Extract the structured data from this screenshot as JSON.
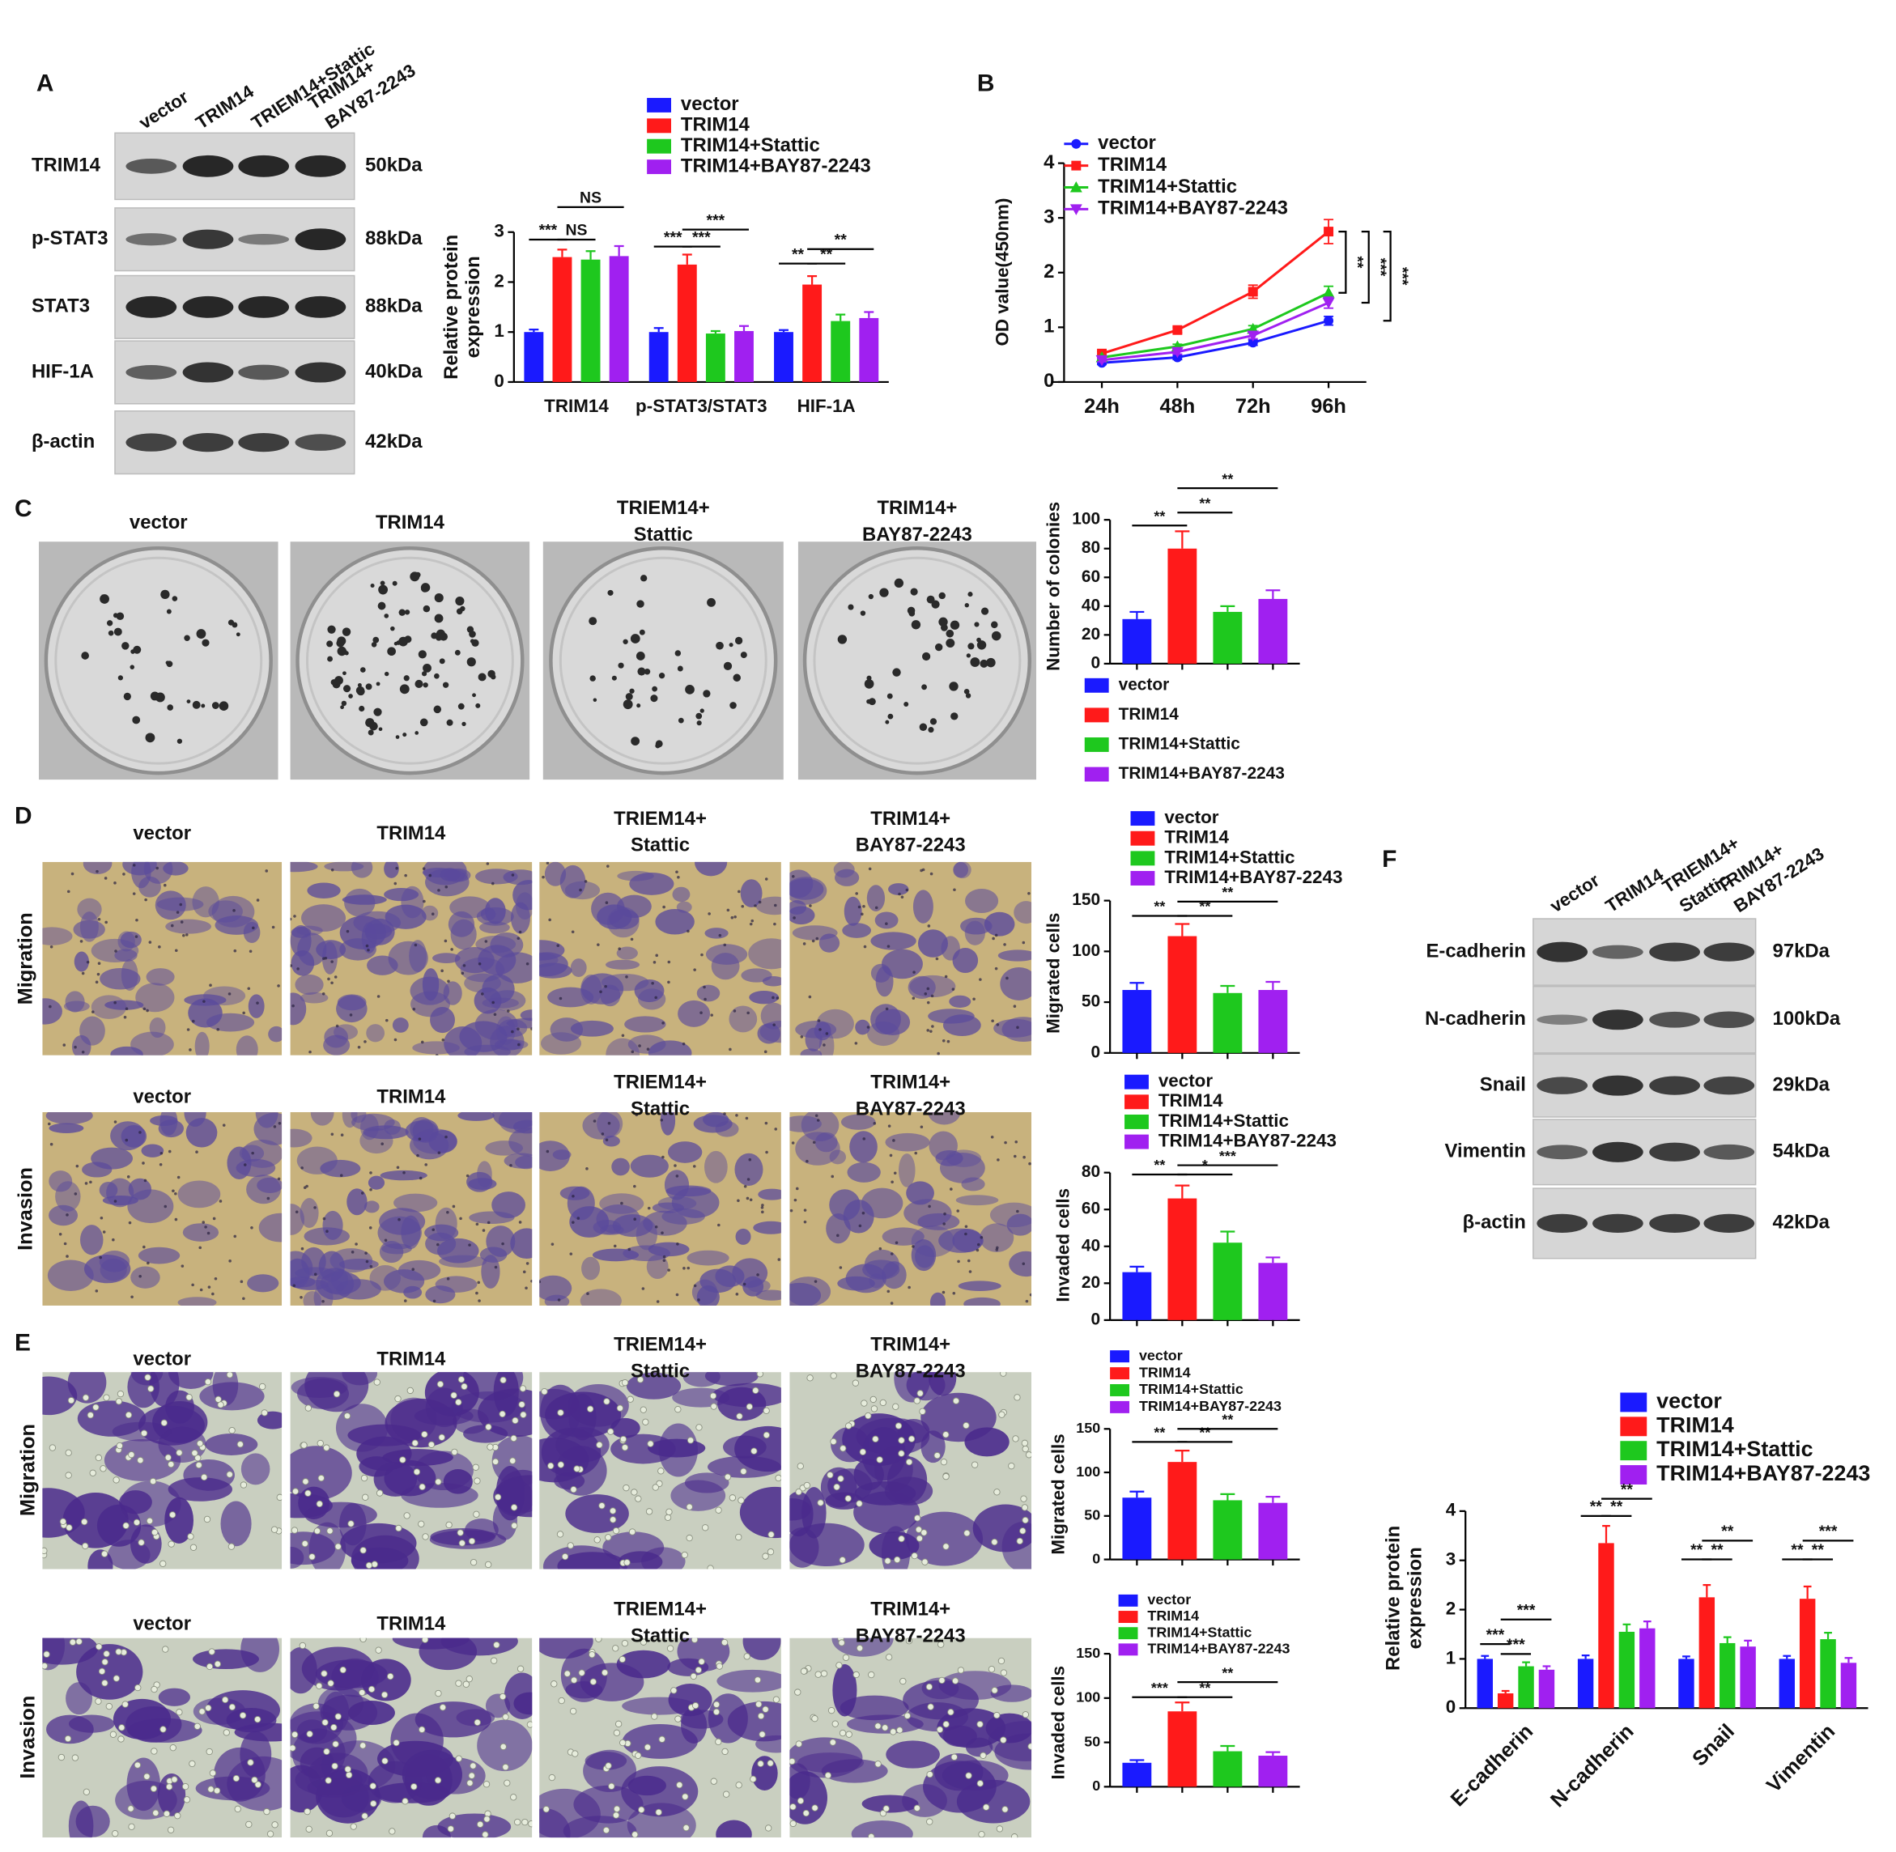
{
  "figure": {
    "panel_labels": [
      "A",
      "B",
      "C",
      "D",
      "E",
      "F"
    ],
    "blots": [
      {
        "lanes": [
          [
            "vector"
          ],
          [
            "TRIM14"
          ],
          [
            "TRIEM14+Stattic"
          ],
          [
            "TRIM14+",
            "BAY87-2243"
          ]
        ],
        "proteins": [
          "TRIM14",
          "p-STAT3",
          "STAT3",
          "HIF-1A",
          "β-actin"
        ],
        "sizes": [
          "50kDa",
          "88kDa",
          "88kDa",
          "40kDa",
          "42kDa"
        ]
      },
      {
        "lanes": [
          [
            "vector"
          ],
          [
            "TRIM14"
          ],
          [
            "TRIEM14+",
            "Stattic"
          ],
          [
            "TRIM14+",
            "BAY87-2243"
          ]
        ],
        "proteins": [
          "E-cadherin",
          "N-cadherin",
          "Snail",
          "Vimentin",
          "β-actin"
        ],
        "sizes": [
          "97kDa",
          "100kDa",
          "29kDa",
          "54kDa",
          "42kDa"
        ]
      }
    ],
    "image_rows": [
      {
        "captions": [
          [
            "vector"
          ],
          [
            "TRIM14"
          ],
          [
            "TRIEM14+",
            "Stattic"
          ],
          [
            "TRIM14+",
            "BAY87-2243"
          ]
        ]
      },
      {
        "row_label": "Migration",
        "captions": [
          [
            "vector"
          ],
          [
            "TRIM14"
          ],
          [
            "TRIEM14+",
            "Stattic"
          ],
          [
            "TRIM14+",
            "BAY87-2243"
          ]
        ]
      },
      {
        "row_label": "Invasion",
        "captions": [
          [
            "vector"
          ],
          [
            "TRIM14"
          ],
          [
            "TRIEM14+",
            "Stattic"
          ],
          [
            "TRIM14+",
            "BAY87-2243"
          ]
        ]
      },
      {
        "row_label": "Migration",
        "captions": [
          [
            "vector"
          ],
          [
            "TRIM14"
          ],
          [
            "TRIEM14+",
            "Stattic"
          ],
          [
            "TRIM14+",
            "BAY87-2243"
          ]
        ]
      },
      {
        "row_label": "Invasion",
        "captions": [
          [
            "vector"
          ],
          [
            "TRIM14"
          ],
          [
            "TRIEM14+",
            "Stattic"
          ],
          [
            "TRIM14+",
            "BAY87-2243"
          ]
        ]
      }
    ]
  },
  "chart_data": [
    {
      "type": "bar",
      "ylabel": [
        "Relative protein",
        "expression"
      ],
      "categories": [
        "TRIM14",
        "p-STAT3/STAT3",
        "HIF-1A"
      ],
      "series": [
        {
          "name": "vector",
          "color": "#1a1aff",
          "values": [
            1.0,
            1.0,
            1.0
          ],
          "errors": [
            0.05,
            0.08,
            0.04
          ]
        },
        {
          "name": "TRIM14",
          "color": "#ff1a1a",
          "values": [
            2.5,
            2.35,
            1.95
          ],
          "errors": [
            0.15,
            0.2,
            0.17
          ]
        },
        {
          "name": "TRIM14+Stattic",
          "color": "#1ec81e",
          "values": [
            2.45,
            0.97,
            1.22
          ],
          "errors": [
            0.17,
            0.05,
            0.13
          ]
        },
        {
          "name": "TRIM14+BAY87-2243",
          "color": "#a020f0",
          "values": [
            2.52,
            1.02,
            1.28
          ],
          "errors": [
            0.2,
            0.1,
            0.12
          ]
        }
      ],
      "ylim": [
        0,
        3
      ],
      "yticks": [
        0,
        1,
        2,
        3
      ],
      "annotations": [
        "***",
        "NS",
        "NS",
        "***",
        "***",
        "***",
        "**",
        "**",
        "**"
      ]
    },
    {
      "type": "line",
      "ylabel": "OD value(450nm)",
      "categories": [
        "24h",
        "48h",
        "72h",
        "96h"
      ],
      "series": [
        {
          "name": "vector",
          "color": "#1a1aff",
          "values": [
            0.35,
            0.45,
            0.72,
            1.12
          ],
          "errors": [
            0.03,
            0.04,
            0.05,
            0.08
          ]
        },
        {
          "name": "TRIM14",
          "color": "#ff1a1a",
          "values": [
            0.52,
            0.95,
            1.65,
            2.75
          ],
          "errors": [
            0.04,
            0.05,
            0.12,
            0.22
          ]
        },
        {
          "name": "TRIM14+Stattic",
          "color": "#1ec81e",
          "values": [
            0.45,
            0.65,
            0.97,
            1.63
          ],
          "errors": [
            0.03,
            0.04,
            0.06,
            0.12
          ]
        },
        {
          "name": "TRIM14+BAY87-2243",
          "color": "#a020f0",
          "values": [
            0.4,
            0.55,
            0.85,
            1.45
          ],
          "errors": [
            0.03,
            0.04,
            0.06,
            0.1
          ]
        }
      ],
      "ylim": [
        0,
        4
      ],
      "yticks": [
        0,
        1,
        2,
        3,
        4
      ],
      "annotations": [
        "**",
        "***",
        "***"
      ]
    },
    {
      "type": "bar",
      "ylabel": "Number of colonies",
      "categories": [
        null
      ],
      "series": [
        {
          "name": "vector",
          "color": "#1a1aff",
          "values": [
            31
          ],
          "errors": [
            5
          ]
        },
        {
          "name": "TRIM14",
          "color": "#ff1a1a",
          "values": [
            80
          ],
          "errors": [
            12
          ]
        },
        {
          "name": "TRIM14+Stattic",
          "color": "#1ec81e",
          "values": [
            36
          ],
          "errors": [
            4
          ]
        },
        {
          "name": "TRIM14+BAY87-2243",
          "color": "#a020f0",
          "values": [
            45
          ],
          "errors": [
            6
          ]
        }
      ],
      "ylim": [
        0,
        100
      ],
      "yticks": [
        0,
        20,
        40,
        60,
        80,
        100
      ],
      "annotations": [
        "**",
        "**",
        "**"
      ]
    },
    {
      "type": "bar",
      "ylabel": "Migrated cells",
      "categories": [
        null
      ],
      "series": [
        {
          "name": "vector",
          "color": "#1a1aff",
          "values": [
            62
          ],
          "errors": [
            7
          ]
        },
        {
          "name": "TRIM14",
          "color": "#ff1a1a",
          "values": [
            115
          ],
          "errors": [
            12
          ]
        },
        {
          "name": "TRIM14+Stattic",
          "color": "#1ec81e",
          "values": [
            59
          ],
          "errors": [
            7
          ]
        },
        {
          "name": "TRIM14+BAY87-2243",
          "color": "#a020f0",
          "values": [
            62
          ],
          "errors": [
            8
          ]
        }
      ],
      "ylim": [
        0,
        150
      ],
      "yticks": [
        0,
        50,
        100,
        150
      ],
      "annotations": [
        "**",
        "**",
        "**"
      ]
    },
    {
      "type": "bar",
      "ylabel": "Invaded cells",
      "categories": [
        null
      ],
      "series": [
        {
          "name": "vector",
          "color": "#1a1aff",
          "values": [
            26
          ],
          "errors": [
            3
          ]
        },
        {
          "name": "TRIM14",
          "color": "#ff1a1a",
          "values": [
            66
          ],
          "errors": [
            7
          ]
        },
        {
          "name": "TRIM14+Stattic",
          "color": "#1ec81e",
          "values": [
            42
          ],
          "errors": [
            6
          ]
        },
        {
          "name": "TRIM14+BAY87-2243",
          "color": "#a020f0",
          "values": [
            31
          ],
          "errors": [
            3
          ]
        }
      ],
      "ylim": [
        0,
        80
      ],
      "yticks": [
        0,
        20,
        40,
        60,
        80
      ],
      "annotations": [
        "**",
        "*",
        "***"
      ]
    },
    {
      "type": "bar",
      "ylabel": "Migrated cells",
      "categories": [
        null
      ],
      "series": [
        {
          "name": "vector",
          "color": "#1a1aff",
          "values": [
            71
          ],
          "errors": [
            7
          ]
        },
        {
          "name": "TRIM14",
          "color": "#ff1a1a",
          "values": [
            112
          ],
          "errors": [
            13
          ]
        },
        {
          "name": "TRIM14+Stattic",
          "color": "#1ec81e",
          "values": [
            68
          ],
          "errors": [
            7
          ]
        },
        {
          "name": "TRIM14+BAY87-2243",
          "color": "#a020f0",
          "values": [
            65
          ],
          "errors": [
            7
          ]
        }
      ],
      "ylim": [
        0,
        150
      ],
      "yticks": [
        0,
        50,
        100,
        150
      ],
      "annotations": [
        "**",
        "**",
        "**"
      ]
    },
    {
      "type": "bar",
      "ylabel": "Invaded cells",
      "categories": [
        null
      ],
      "series": [
        {
          "name": "vector",
          "color": "#1a1aff",
          "values": [
            27
          ],
          "errors": [
            3
          ]
        },
        {
          "name": "TRIM14",
          "color": "#ff1a1a",
          "values": [
            85
          ],
          "errors": [
            10
          ]
        },
        {
          "name": "TRIM14+Stattic",
          "color": "#1ec81e",
          "values": [
            40
          ],
          "errors": [
            6
          ]
        },
        {
          "name": "TRIM14+BAY87-2243",
          "color": "#a020f0",
          "values": [
            35
          ],
          "errors": [
            4
          ]
        }
      ],
      "ylim": [
        0,
        150
      ],
      "yticks": [
        0,
        50,
        100,
        150
      ],
      "annotations": [
        "***",
        "**",
        "**"
      ]
    },
    {
      "type": "bar",
      "ylabel": [
        "Relative protein",
        "expression"
      ],
      "categories": [
        "E-cadherin",
        "N-cadherin",
        "Snail",
        "Vimentin"
      ],
      "series": [
        {
          "name": "vector",
          "color": "#1a1aff",
          "values": [
            1.0,
            1.0,
            1.0,
            1.0
          ],
          "errors": [
            0.06,
            0.07,
            0.05,
            0.06
          ]
        },
        {
          "name": "TRIM14",
          "color": "#ff1a1a",
          "values": [
            0.3,
            3.35,
            2.25,
            2.22
          ],
          "errors": [
            0.05,
            0.35,
            0.25,
            0.25
          ]
        },
        {
          "name": "TRIM14+Stattic",
          "color": "#1ec81e",
          "values": [
            0.85,
            1.55,
            1.32,
            1.4
          ],
          "errors": [
            0.08,
            0.15,
            0.12,
            0.13
          ]
        },
        {
          "name": "TRIM14+BAY87-2243",
          "color": "#a020f0",
          "values": [
            0.78,
            1.62,
            1.25,
            0.92
          ],
          "errors": [
            0.07,
            0.14,
            0.12,
            0.1
          ]
        }
      ],
      "ylim": [
        0,
        4
      ],
      "yticks": [
        0,
        1,
        2,
        3,
        4
      ],
      "annotations": [
        "***",
        "***",
        "***",
        "**",
        "**",
        "**",
        "**",
        "**",
        "**",
        "**",
        "**",
        "***"
      ]
    }
  ]
}
